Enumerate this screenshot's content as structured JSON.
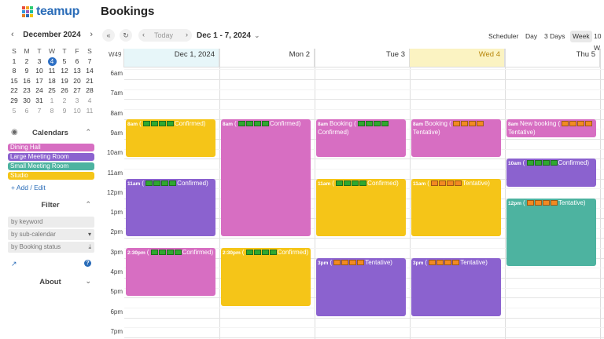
{
  "header": {
    "logo_text": "teamup",
    "page_title": "Bookings"
  },
  "colors": {
    "dining_hall": "#d76ec2",
    "large_meeting_room": "#8b62cf",
    "small_meeting_room": "#4db3a0",
    "studio": "#f5c518",
    "accent": "#2d6fc4",
    "today_bg": "#e7f6f9",
    "wed_bg": "#fbf3c2"
  },
  "mini_calendar": {
    "title": "December 2024",
    "weekdays": [
      "S",
      "M",
      "T",
      "W",
      "T",
      "F",
      "S"
    ],
    "weeks": [
      [
        "1",
        "2",
        "3",
        "4",
        "5",
        "6",
        "7"
      ],
      [
        "8",
        "9",
        "10",
        "11",
        "12",
        "13",
        "14"
      ],
      [
        "15",
        "16",
        "17",
        "18",
        "19",
        "20",
        "21"
      ],
      [
        "22",
        "23",
        "24",
        "25",
        "26",
        "27",
        "28"
      ],
      [
        "29",
        "30",
        "31",
        "1",
        "2",
        "3",
        "4"
      ],
      [
        "5",
        "6",
        "7",
        "8",
        "9",
        "10",
        "11"
      ]
    ],
    "today": "4"
  },
  "calendars_section": {
    "title": "Calendars",
    "items": [
      {
        "label": "Dining Hall",
        "color": "#d76ec2"
      },
      {
        "label": "Large Meeting Room",
        "color": "#8b62cf"
      },
      {
        "label": "Small Meeting Room",
        "color": "#4db3a0"
      },
      {
        "label": "Studio",
        "color": "#f5c518"
      }
    ],
    "add_edit": "Add / Edit"
  },
  "filter_section": {
    "title": "Filter",
    "keyword_placeholder": "by keyword",
    "subcal_label": "by sub-calendar",
    "status_label": "by Booking status"
  },
  "about_section": {
    "title": "About"
  },
  "toolbar": {
    "today_label": "Today",
    "date_range": "Dec 1 - 7, 2024",
    "views": [
      "Scheduler",
      "Day",
      "3 Days",
      "Week",
      "10 W"
    ],
    "active_view": "Week"
  },
  "calendar": {
    "week_label": "W49",
    "days": [
      "Dec 1, 2024",
      "Mon 2",
      "Tue 3",
      "Wed 4",
      "Thu 5"
    ],
    "times": [
      "6am",
      "7am",
      "8am",
      "9am",
      "10am",
      "11am",
      "12pm",
      "1pm",
      "2pm",
      "3pm",
      "4pm",
      "5pm",
      "6pm",
      "7pm"
    ],
    "events": [
      {
        "day": 0,
        "start": 8,
        "end": 10,
        "color": "#f5c518",
        "time": "8am",
        "squares": "gggg",
        "text": "Confirmed)"
      },
      {
        "day": 0,
        "start": 11,
        "end": 14,
        "color": "#8b62cf",
        "time": "11am",
        "squares": "gggg",
        "text": "Confirmed)"
      },
      {
        "day": 0,
        "start": 14.5,
        "end": 17,
        "color": "#d76ec2",
        "time": "2:30pm",
        "squares": "gggg",
        "text": "Confirmed)"
      },
      {
        "day": 1,
        "start": 8,
        "end": 14,
        "color": "#d76ec2",
        "time": "8am",
        "squares": "gggg",
        "text": "Confirmed)"
      },
      {
        "day": 1,
        "start": 14.5,
        "end": 17.5,
        "color": "#f5c518",
        "time": "2:30pm",
        "squares": "gggg",
        "text": "Confirmed)"
      },
      {
        "day": 2,
        "start": 8,
        "end": 10,
        "color": "#d76ec2",
        "time": "8am",
        "title": "Booking",
        "squares": "gggg",
        "text": "Confirmed)"
      },
      {
        "day": 2,
        "start": 11,
        "end": 14,
        "color": "#f5c518",
        "time": "11am",
        "squares": "gggg",
        "text": "Confirmed)"
      },
      {
        "day": 2,
        "start": 15,
        "end": 18,
        "color": "#8b62cf",
        "time": "3pm",
        "squares": "oooo",
        "text": "Tentative)"
      },
      {
        "day": 3,
        "start": 8,
        "end": 10,
        "color": "#d76ec2",
        "time": "8am",
        "title": "Booking",
        "squares": "oooo",
        "text": "Tentative)"
      },
      {
        "day": 3,
        "start": 11,
        "end": 14,
        "color": "#f5c518",
        "time": "11am",
        "squares": "oooo",
        "text": "Tentative)"
      },
      {
        "day": 3,
        "start": 15,
        "end": 18,
        "color": "#8b62cf",
        "time": "3pm",
        "squares": "oooo",
        "text": "Tentative)"
      },
      {
        "day": 4,
        "start": 8,
        "end": 9,
        "color": "#d76ec2",
        "time": "8am",
        "title": "New booking",
        "squares": "oooo",
        "text": "Tentative)"
      },
      {
        "day": 4,
        "start": 10,
        "end": 11.5,
        "color": "#8b62cf",
        "time": "10am",
        "squares": "gggg",
        "text": "Confirmed)"
      },
      {
        "day": 4,
        "start": 12,
        "end": 15.5,
        "color": "#4db3a0",
        "time": "12pm",
        "squares": "oooo",
        "text": "Tentative)"
      }
    ]
  }
}
